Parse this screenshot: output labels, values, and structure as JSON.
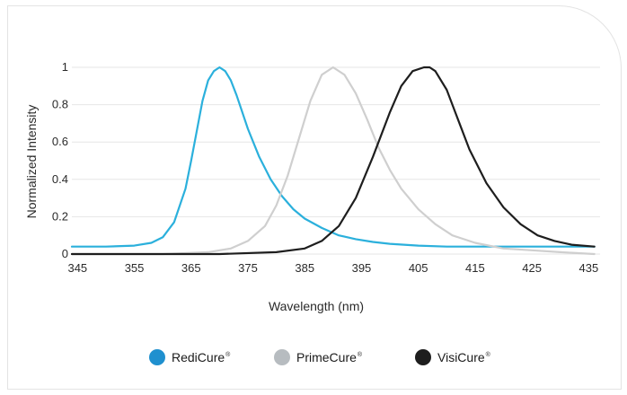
{
  "chart_data": {
    "type": "line",
    "xlabel": "Wavelength (nm)",
    "ylabel": "Normalized Intensity",
    "xlim": [
      344,
      437
    ],
    "ylim": [
      0,
      1
    ],
    "x_ticks": [
      345,
      355,
      365,
      375,
      385,
      395,
      405,
      415,
      425,
      435
    ],
    "y_ticks": [
      0,
      0.2,
      0.4,
      0.6,
      0.8,
      1
    ],
    "grid": "horizontal",
    "legend_position": "bottom",
    "series": [
      {
        "name": "RediCure",
        "color": "#2bb0dc",
        "x": [
          344,
          350,
          355,
          358,
          360,
          362,
          364,
          365,
          366,
          367,
          368,
          369,
          370,
          371,
          372,
          373,
          374,
          375,
          377,
          379,
          381,
          383,
          385,
          388,
          391,
          394,
          397,
          400,
          405,
          410,
          415,
          420,
          425,
          430,
          436
        ],
        "y": [
          0.04,
          0.04,
          0.045,
          0.06,
          0.09,
          0.17,
          0.35,
          0.5,
          0.66,
          0.82,
          0.93,
          0.98,
          1.0,
          0.98,
          0.93,
          0.85,
          0.76,
          0.67,
          0.52,
          0.4,
          0.31,
          0.24,
          0.19,
          0.14,
          0.1,
          0.08,
          0.065,
          0.055,
          0.045,
          0.04,
          0.04,
          0.04,
          0.04,
          0.04,
          0.04
        ]
      },
      {
        "name": "PrimeCure",
        "color": "#cfcfcf",
        "x": [
          344,
          360,
          368,
          372,
          375,
          378,
          380,
          382,
          384,
          386,
          388,
          390,
          392,
          394,
          396,
          398,
          400,
          402,
          405,
          408,
          411,
          415,
          420,
          425,
          430,
          436
        ],
        "y": [
          0.0,
          0.0,
          0.01,
          0.03,
          0.07,
          0.15,
          0.26,
          0.42,
          0.62,
          0.82,
          0.96,
          1.0,
          0.96,
          0.86,
          0.72,
          0.57,
          0.45,
          0.35,
          0.24,
          0.16,
          0.1,
          0.06,
          0.03,
          0.02,
          0.01,
          0.0
        ]
      },
      {
        "name": "VisiCure",
        "color": "#1e1e1e",
        "x": [
          344,
          370,
          380,
          385,
          388,
          391,
          394,
          397,
          400,
          402,
          404,
          406,
          407,
          408,
          410,
          412,
          414,
          417,
          420,
          423,
          426,
          429,
          432,
          436
        ],
        "y": [
          0.0,
          0.0,
          0.01,
          0.03,
          0.07,
          0.15,
          0.3,
          0.52,
          0.76,
          0.9,
          0.98,
          1.0,
          1.0,
          0.98,
          0.88,
          0.72,
          0.56,
          0.38,
          0.25,
          0.16,
          0.1,
          0.07,
          0.05,
          0.04
        ]
      }
    ]
  },
  "legend": [
    {
      "label": "RediCure",
      "mark": "®",
      "color": "#1f90cf"
    },
    {
      "label": "PrimeCure",
      "mark": "®",
      "color": "#b7bcc0"
    },
    {
      "label": "VisiCure",
      "mark": "®",
      "color": "#1e1e1e"
    }
  ]
}
